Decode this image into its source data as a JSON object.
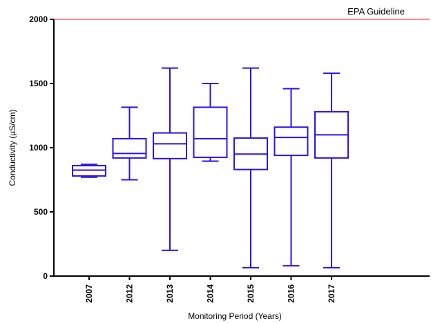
{
  "chart_data": {
    "type": "boxplot",
    "xlabel": "Monitoring Period (Years)",
    "ylabel": "Conductivity (µS/cm)",
    "ylim": [
      0,
      2000
    ],
    "yticks": [
      0,
      500,
      1000,
      1500,
      2000
    ],
    "categories": [
      "2007",
      "2012",
      "2013",
      "2014",
      "2015",
      "2016",
      "2017"
    ],
    "boxes": [
      {
        "category": "2007",
        "min": 770,
        "q1": 780,
        "median": 825,
        "q3": 860,
        "max": 870
      },
      {
        "category": "2012",
        "min": 750,
        "q1": 920,
        "median": 955,
        "q3": 1070,
        "max": 1315
      },
      {
        "category": "2013",
        "min": 200,
        "q1": 915,
        "median": 1030,
        "q3": 1115,
        "max": 1620
      },
      {
        "category": "2014",
        "min": 895,
        "q1": 925,
        "median": 1070,
        "q3": 1315,
        "max": 1500
      },
      {
        "category": "2015",
        "min": 65,
        "q1": 830,
        "median": 950,
        "q3": 1075,
        "max": 1620
      },
      {
        "category": "2016",
        "min": 80,
        "q1": 940,
        "median": 1080,
        "q3": 1160,
        "max": 1460
      },
      {
        "category": "2017",
        "min": 65,
        "q1": 920,
        "median": 1100,
        "q3": 1280,
        "max": 1580
      }
    ],
    "reference_line": {
      "value": 2000,
      "label": "EPA Guideline",
      "color": "#e8474f"
    },
    "box_color": "#2f10e6",
    "axis_color": "#000000",
    "grid": false
  }
}
